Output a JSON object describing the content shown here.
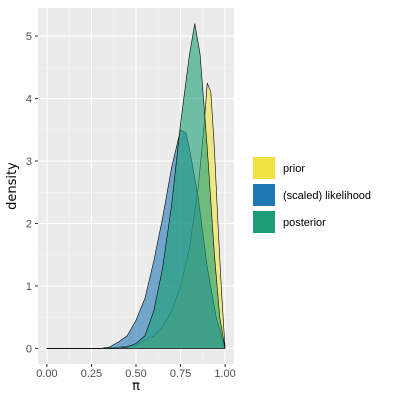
{
  "chart_data": {
    "type": "area",
    "xlabel": "π",
    "ylabel": "density",
    "xlim": [
      0,
      1
    ],
    "ylim": [
      -0.25,
      5.45
    ],
    "x_ticks": [
      0.0,
      0.25,
      0.5,
      0.75,
      1.0
    ],
    "x_tick_labels": [
      "0.00",
      "0.25",
      "0.50",
      "0.75",
      "1.00"
    ],
    "y_ticks": [
      0,
      1,
      2,
      3,
      4,
      5
    ],
    "y_tick_labels": [
      "0",
      "1",
      "2",
      "3",
      "4",
      "5"
    ],
    "grid": true,
    "legend_position": "right",
    "series": [
      {
        "name": "prior",
        "color": "#f0e442",
        "x": [
          0.0,
          0.3,
          0.4,
          0.5,
          0.6,
          0.65,
          0.7,
          0.75,
          0.8,
          0.85,
          0.88,
          0.9,
          0.92,
          0.94,
          0.96,
          0.98,
          1.0
        ],
        "y": [
          0.0,
          0.0,
          0.02,
          0.05,
          0.2,
          0.35,
          0.6,
          1.0,
          1.6,
          2.6,
          3.5,
          4.25,
          4.1,
          3.2,
          2.0,
          0.9,
          0.0
        ]
      },
      {
        "name": "(scaled) likelihood",
        "color": "#1f78b4",
        "x": [
          0.0,
          0.3,
          0.35,
          0.4,
          0.45,
          0.5,
          0.55,
          0.6,
          0.65,
          0.7,
          0.75,
          0.78,
          0.8,
          0.85,
          0.9,
          0.95,
          1.0
        ],
        "y": [
          0.0,
          0.0,
          0.02,
          0.1,
          0.2,
          0.45,
          0.8,
          1.4,
          2.1,
          2.9,
          3.5,
          3.45,
          3.2,
          2.4,
          1.3,
          0.5,
          0.0
        ]
      },
      {
        "name": "posterior",
        "color": "#1b9e77",
        "x": [
          0.0,
          0.4,
          0.45,
          0.5,
          0.55,
          0.6,
          0.65,
          0.7,
          0.75,
          0.8,
          0.83,
          0.86,
          0.9,
          0.94,
          0.97,
          1.0
        ],
        "y": [
          0.0,
          0.0,
          0.02,
          0.08,
          0.2,
          0.6,
          1.3,
          2.3,
          3.6,
          4.7,
          5.2,
          4.7,
          3.2,
          1.5,
          0.5,
          0.0
        ]
      }
    ]
  }
}
